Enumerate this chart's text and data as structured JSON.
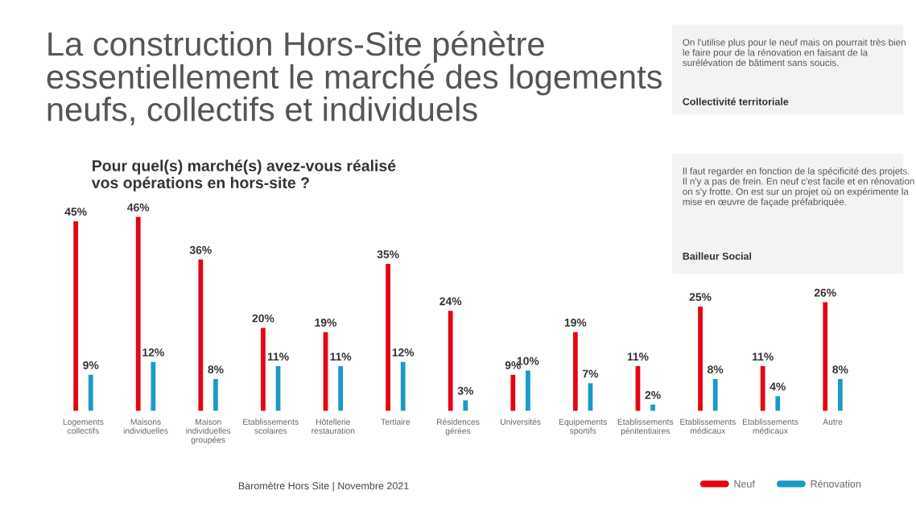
{
  "chart_data": {
    "type": "bar",
    "title": "La construction Hors-Site pénètre\nessentiellement le marché des logements\nneufs, collectifs et individuels",
    "subtitle": "Pour quel(s) marché(s) avez-vous réalisé\nvos opérations en hors-site ?",
    "categories": [
      "Logements\ncollectifs",
      "Maisons\nindividuelles",
      "Maison\nindividuelles\ngroupées",
      "Etablissements\nscolaires",
      "Hôtellerie\nrestauration",
      "Tertiaire",
      "Résidences\ngérées",
      "Universités",
      "Equipements\nsportifs",
      "Etablissements\npénitentiaires",
      "Etablissements\nmédicaux",
      "Etablissements\nmédicaux",
      "Autre"
    ],
    "series": [
      {
        "name": "Neuf",
        "color": "#e30613",
        "values": [
          45,
          46,
          36,
          20,
          19,
          35,
          24,
          9,
          19,
          11,
          25,
          11,
          26
        ],
        "value_labels": [
          "45%",
          "46%",
          "36%",
          "20%",
          "19%",
          "35%",
          "24%",
          "9%",
          "19%",
          "11%",
          "25%",
          "11%",
          "26%"
        ]
      },
      {
        "name": "Rénovation",
        "color": "#1a9ac9",
        "values": [
          9,
          12,
          8,
          11,
          11,
          12,
          3,
          10,
          7,
          2,
          8,
          4,
          8
        ],
        "value_labels": [
          "9%",
          "12%",
          "8%",
          "11%",
          "11%",
          "12%",
          "3%",
          "10%",
          "7%",
          "2%",
          "8%",
          "4%",
          "8%"
        ]
      }
    ],
    "legend": "bottom right",
    "grid": false,
    "annotations": [
      "On l'utilise plus pour le neuf mais on pourrait très bien le faire pour de la rénovation en faisant de la surélévation de bâtiment sans soucis.",
      "Collectivité territoriale",
      "Il faut regarder en fonction de la spécificité des projets. Il n'y a pas de frein. En neuf c'est facile et en rénovation on s'y frotte. On est sur un projet où on expérimente la mise en œuvre de façade préfabriquée.",
      "Bailleur Social",
      "Baromètre Hors Site | Novembre 2021"
    ]
  }
}
